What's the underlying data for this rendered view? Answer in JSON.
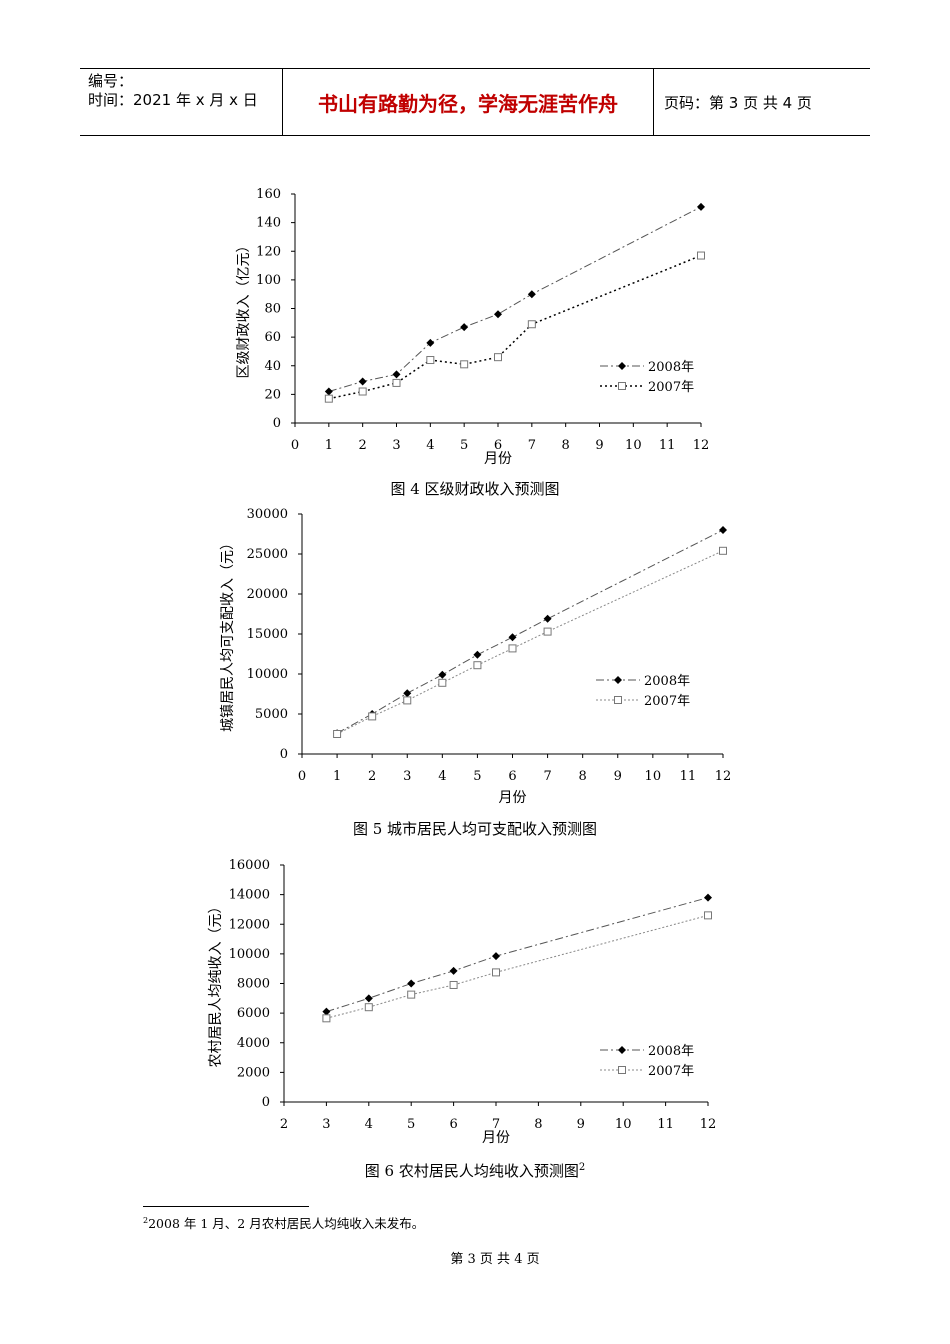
{
  "header": {
    "number_label": "编号：",
    "time_label": "时间：2021 年 x 月 x 日",
    "motto": "书山有路勤为径，学海无涯苦作舟",
    "page_label": "页码：第 3 页  共 4 页"
  },
  "colors": {
    "motto": "#c00000",
    "series_2008": "#555555",
    "series_2007": "#888888",
    "line_2007_fig4": "#000000"
  },
  "chart_data": [
    {
      "type": "line",
      "caption": "图 4    区级财政收入预测图",
      "xlabel": "月份",
      "ylabel": "区级财政收入（亿元）",
      "xlim": [
        0,
        12
      ],
      "ylim": [
        0,
        160
      ],
      "xticks": [
        0,
        1,
        2,
        3,
        4,
        5,
        6,
        7,
        8,
        9,
        10,
        11,
        12
      ],
      "yticks": [
        0,
        20,
        40,
        60,
        80,
        100,
        120,
        140,
        160
      ],
      "legend_position": "right",
      "series": [
        {
          "name": "2008年",
          "marker": "diamond",
          "x": [
            1,
            2,
            3,
            4,
            5,
            6,
            7,
            12
          ],
          "values": [
            22,
            29,
            34,
            56,
            67,
            76,
            90,
            151
          ]
        },
        {
          "name": "2007年",
          "marker": "square",
          "x": [
            1,
            2,
            3,
            4,
            5,
            6,
            7,
            12
          ],
          "values": [
            17,
            22,
            28,
            44,
            41,
            46,
            69,
            117
          ]
        }
      ]
    },
    {
      "type": "line",
      "caption": "图 5    城市居民人均可支配收入预测图",
      "xlabel": "月份",
      "ylabel": "城镇居民人均可支配收入（元）",
      "xlim": [
        0,
        12
      ],
      "ylim": [
        0,
        30000
      ],
      "xticks": [
        0,
        1,
        2,
        3,
        4,
        5,
        6,
        7,
        8,
        9,
        10,
        11,
        12
      ],
      "yticks": [
        0,
        5000,
        10000,
        15000,
        20000,
        25000,
        30000
      ],
      "legend_position": "right",
      "series": [
        {
          "name": "2008年",
          "marker": "diamond",
          "x": [
            1,
            2,
            3,
            4,
            5,
            6,
            7,
            12
          ],
          "values": [
            2600,
            5000,
            7600,
            9900,
            12400,
            14600,
            16900,
            28000
          ]
        },
        {
          "name": "2007年",
          "marker": "square",
          "x": [
            1,
            2,
            3,
            4,
            5,
            6,
            7,
            12
          ],
          "values": [
            2500,
            4700,
            6700,
            8900,
            11100,
            13200,
            15300,
            25400
          ]
        }
      ]
    },
    {
      "type": "line",
      "caption": "图 6  农村居民人均纯收入预测图",
      "caption_sup": "2",
      "xlabel": "月份",
      "ylabel": "农村居民人均纯收入（元）",
      "xlim": [
        2,
        12
      ],
      "ylim": [
        0,
        16000
      ],
      "xticks": [
        2,
        3,
        4,
        5,
        6,
        7,
        8,
        9,
        10,
        11,
        12
      ],
      "yticks": [
        0,
        2000,
        4000,
        6000,
        8000,
        10000,
        12000,
        14000,
        16000
      ],
      "legend_position": "right",
      "series": [
        {
          "name": "2008年",
          "marker": "diamond",
          "x": [
            3,
            4,
            5,
            6,
            7,
            12
          ],
          "values": [
            6100,
            7000,
            8000,
            8850,
            9850,
            13800
          ]
        },
        {
          "name": "2007年",
          "marker": "square",
          "x": [
            3,
            4,
            5,
            6,
            7,
            12
          ],
          "values": [
            5650,
            6400,
            7250,
            7900,
            8750,
            12600
          ]
        }
      ]
    }
  ],
  "footnote": {
    "sup": "2",
    "text": "2008 年 1 月、2 月农村居民人均纯收入未发布。"
  },
  "page_footer": "第  3  页  共  4  页"
}
